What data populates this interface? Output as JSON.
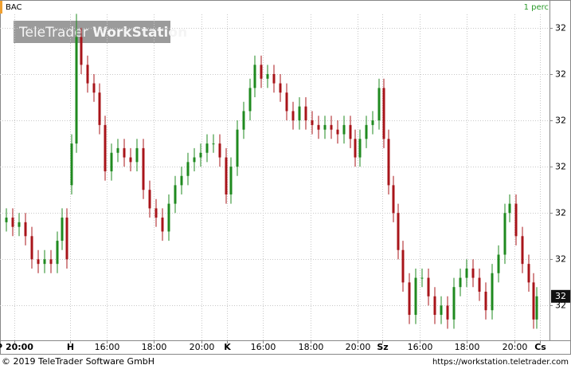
{
  "chart_data": {
    "type": "candlestick",
    "symbol": "BAC",
    "period": "1 perc",
    "watermark": {
      "brand": "TeleTrader",
      "product": "WorkStation"
    },
    "up_color": "#1f8a1f",
    "down_color": "#a8141a",
    "x": [
      8,
      16,
      24,
      32,
      40,
      48,
      56,
      64,
      72,
      78,
      84,
      90,
      96,
      102,
      110,
      118,
      125,
      132,
      140,
      148,
      156,
      164,
      172,
      180,
      188,
      196,
      204,
      212,
      220,
      228,
      236,
      244,
      252,
      260,
      268,
      276,
      284,
      290,
      298,
      306,
      314,
      320,
      328,
      336,
      344,
      352,
      360,
      368,
      376,
      384,
      392,
      400,
      408,
      416,
      424,
      432,
      440,
      446,
      452,
      460,
      468,
      476,
      482,
      488,
      494,
      500,
      506,
      514,
      522,
      530,
      538,
      546,
      554,
      562,
      570,
      578,
      586,
      594,
      602,
      610,
      618,
      626,
      634,
      640,
      648,
      656,
      664,
      670,
      674
    ],
    "open": [
      32.018,
      32.019,
      32.017,
      32.018,
      32.015,
      32.01,
      32.009,
      32.01,
      32.009,
      32.014,
      32.019,
      32.026,
      32.035,
      32.058,
      32.052,
      32.048,
      32.046,
      32.039,
      32.029,
      32.033,
      32.034,
      32.032,
      32.031,
      32.034,
      32.025,
      32.021,
      32.019,
      32.016,
      32.022,
      32.026,
      32.028,
      32.031,
      32.032,
      32.033,
      32.035,
      32.035,
      32.032,
      32.024,
      32.03,
      32.038,
      32.042,
      32.047,
      32.052,
      32.049,
      32.05,
      32.048,
      32.046,
      32.042,
      32.04,
      32.043,
      32.04,
      32.039,
      32.038,
      32.039,
      32.038,
      32.037,
      32.039,
      32.036,
      32.032,
      32.036,
      32.039,
      32.04,
      32.047,
      32.036,
      32.026,
      32.02,
      32.012,
      32.005,
      31.998,
      32.006,
      32.006,
      32.002,
      31.998,
      32.0,
      31.997,
      32.004,
      32.006,
      32.008,
      32.006,
      32.003,
      31.999,
      32.007,
      32.011,
      32.02,
      32.022,
      32.015,
      32.009,
      32.005,
      31.997
    ],
    "high": [
      32.021,
      32.021,
      32.02,
      32.02,
      32.017,
      32.012,
      32.012,
      32.012,
      32.016,
      32.021,
      32.021,
      32.037,
      32.063,
      32.06,
      32.054,
      32.05,
      32.048,
      32.041,
      32.035,
      32.036,
      32.036,
      32.034,
      32.036,
      32.036,
      32.027,
      32.023,
      32.021,
      32.024,
      32.028,
      32.03,
      32.033,
      32.034,
      32.035,
      32.037,
      32.037,
      32.037,
      32.034,
      32.032,
      32.04,
      32.044,
      32.049,
      32.054,
      32.054,
      32.052,
      32.052,
      32.05,
      32.048,
      32.044,
      32.045,
      32.045,
      32.042,
      32.041,
      32.041,
      32.041,
      32.04,
      32.041,
      32.041,
      32.038,
      32.038,
      32.041,
      32.042,
      32.049,
      32.049,
      32.038,
      32.028,
      32.022,
      32.014,
      32.007,
      32.008,
      32.008,
      32.008,
      32.004,
      32.002,
      32.002,
      32.006,
      32.008,
      32.01,
      32.01,
      32.008,
      32.005,
      32.009,
      32.013,
      32.022,
      32.024,
      32.024,
      32.017,
      32.011,
      32.007,
      32.004
    ],
    "low": [
      32.016,
      32.015,
      32.015,
      32.013,
      32.008,
      32.007,
      32.007,
      32.007,
      32.007,
      32.012,
      32.008,
      32.024,
      32.033,
      32.05,
      32.046,
      32.044,
      32.037,
      32.027,
      32.027,
      32.031,
      32.03,
      32.029,
      32.029,
      32.023,
      32.019,
      32.017,
      32.014,
      32.014,
      32.02,
      32.024,
      32.026,
      32.029,
      32.03,
      32.031,
      32.033,
      32.03,
      32.022,
      32.022,
      32.028,
      32.036,
      32.04,
      32.045,
      32.047,
      32.047,
      32.046,
      32.044,
      32.04,
      32.038,
      32.038,
      32.038,
      32.037,
      32.036,
      32.036,
      32.036,
      32.035,
      32.035,
      32.034,
      32.03,
      32.03,
      32.034,
      32.037,
      32.038,
      32.034,
      32.024,
      32.018,
      32.01,
      32.003,
      31.996,
      31.996,
      32.004,
      32.0,
      31.996,
      31.996,
      31.995,
      31.995,
      32.002,
      32.004,
      32.004,
      32.001,
      31.997,
      31.997,
      32.005,
      32.009,
      32.018,
      32.013,
      32.007,
      32.003,
      31.995,
      31.995
    ],
    "close": [
      32.019,
      32.017,
      32.018,
      32.015,
      32.01,
      32.009,
      32.01,
      32.009,
      32.014,
      32.019,
      32.01,
      32.035,
      32.058,
      32.052,
      32.048,
      32.046,
      32.039,
      32.029,
      32.033,
      32.034,
      32.032,
      32.031,
      32.034,
      32.025,
      32.021,
      32.019,
      32.016,
      32.022,
      32.026,
      32.028,
      32.031,
      32.032,
      32.033,
      32.035,
      32.035,
      32.032,
      32.024,
      32.03,
      32.038,
      32.042,
      32.047,
      32.052,
      32.049,
      32.05,
      32.048,
      32.046,
      32.042,
      32.04,
      32.043,
      32.04,
      32.039,
      32.038,
      32.039,
      32.038,
      32.037,
      32.039,
      32.036,
      32.032,
      32.036,
      32.039,
      32.04,
      32.047,
      32.036,
      32.026,
      32.02,
      32.012,
      32.005,
      31.998,
      32.006,
      32.006,
      32.002,
      31.998,
      32.0,
      31.997,
      32.004,
      32.006,
      32.008,
      32.006,
      32.003,
      31.999,
      32.007,
      32.011,
      32.02,
      32.022,
      32.015,
      32.009,
      32.005,
      31.997,
      32.002
    ],
    "xlim": [
      0,
      690
    ],
    "xticks": [
      {
        "value": 18,
        "label": "P 20:00"
      },
      {
        "value": 88,
        "label": "H"
      },
      {
        "value": 134,
        "label": "16:00"
      },
      {
        "value": 193,
        "label": "18:00"
      },
      {
        "value": 253,
        "label": "20:00"
      },
      {
        "value": 285,
        "label": "K"
      },
      {
        "value": 330,
        "label": "16:00"
      },
      {
        "value": 390,
        "label": "18:00"
      },
      {
        "value": 449,
        "label": "20:00"
      },
      {
        "value": 480,
        "label": "Sz"
      },
      {
        "value": 527,
        "label": "16:00"
      },
      {
        "value": 586,
        "label": "18:00"
      },
      {
        "value": 646,
        "label": "20:00"
      },
      {
        "value": 678,
        "label": "Cs"
      }
    ],
    "ylim": [
      31.9925,
      32.066
    ],
    "yticks": [
      {
        "value": 32.0,
        "label": "32"
      },
      {
        "value": 32.01,
        "label": "32"
      },
      {
        "value": 32.02,
        "label": "32"
      },
      {
        "value": 32.03,
        "label": "32"
      },
      {
        "value": 32.04,
        "label": "32"
      },
      {
        "value": 32.05,
        "label": "32"
      },
      {
        "value": 32.06,
        "label": "32"
      }
    ],
    "last_price": {
      "value": 32.002,
      "label": "32"
    },
    "grid": true
  },
  "footer": {
    "copyright": "© 2019 TeleTrader Software GmbH",
    "url": "https://workstation.teletrader.com"
  }
}
